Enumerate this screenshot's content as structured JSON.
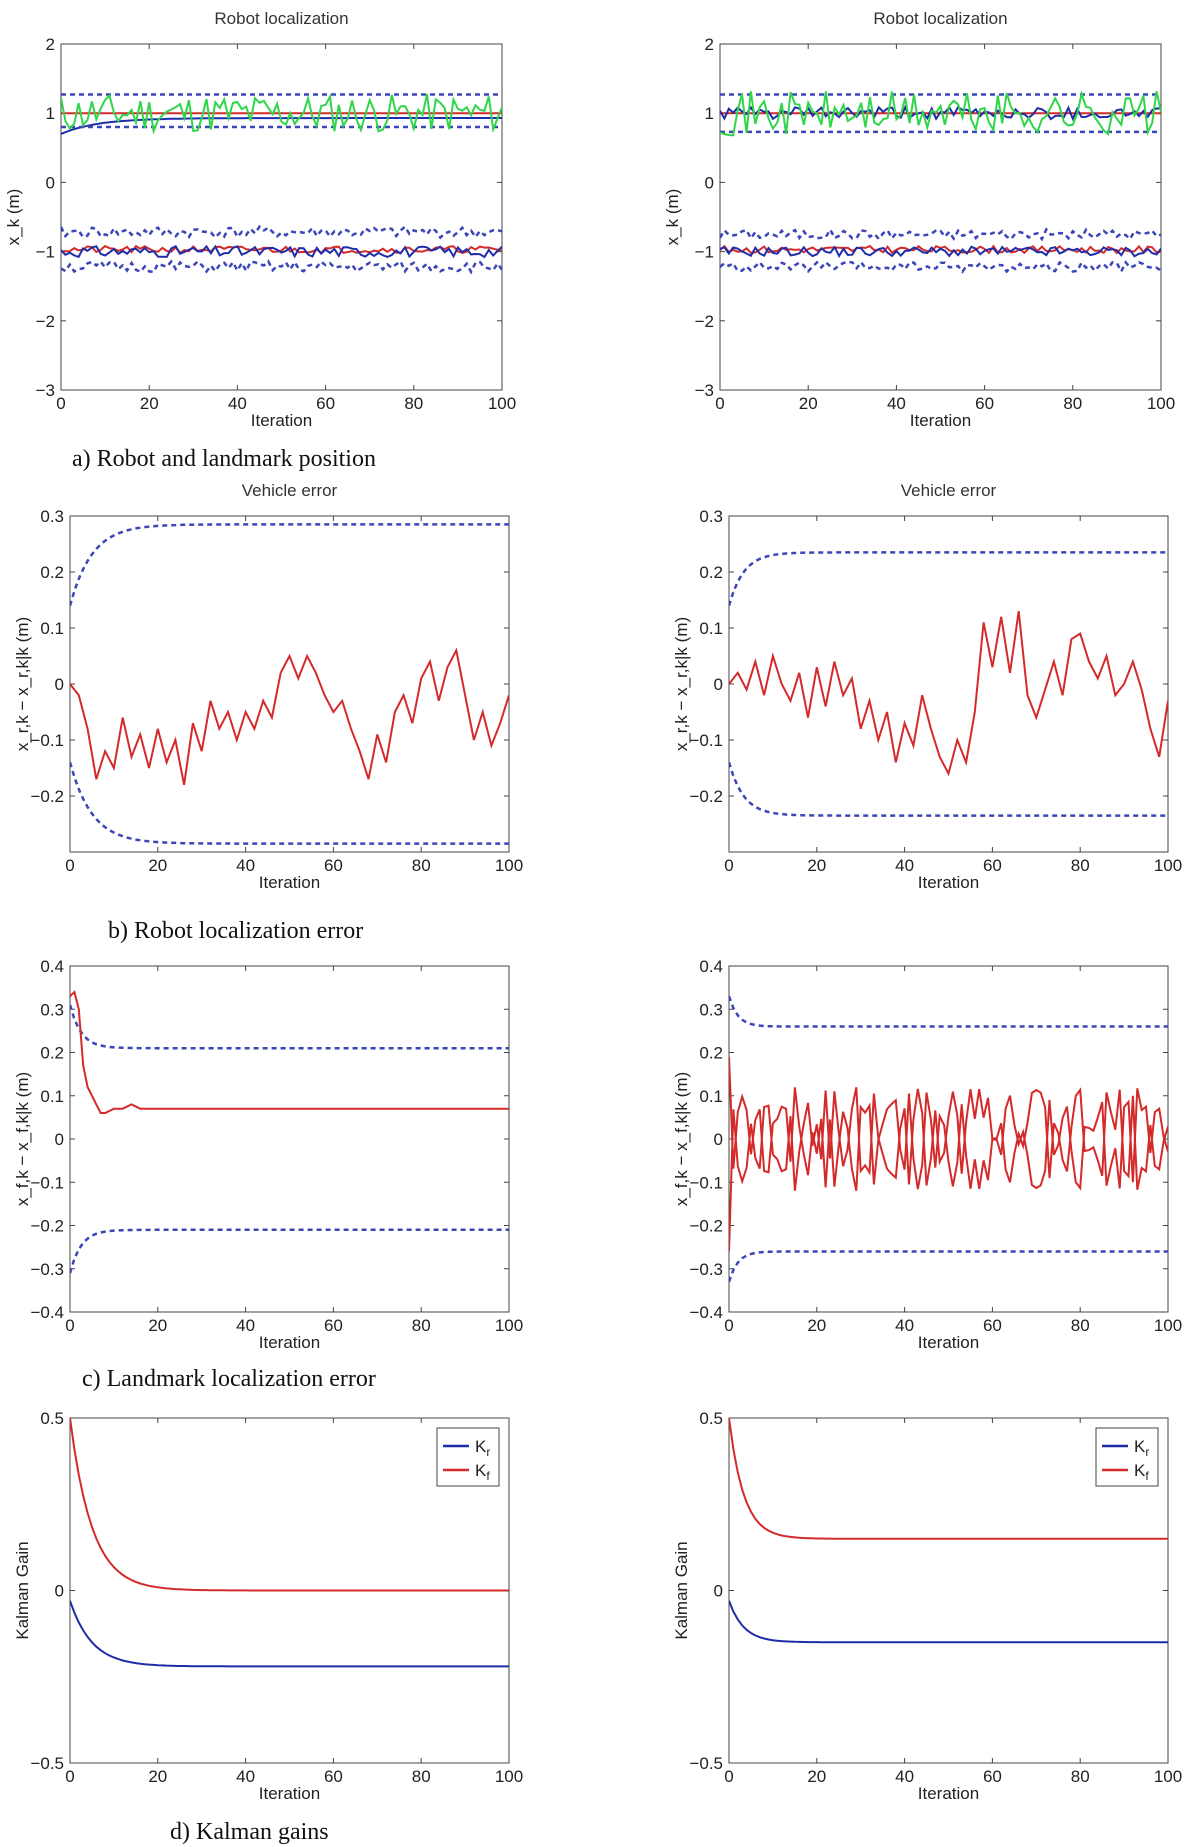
{
  "colors": {
    "blue": "#1f2ea8",
    "dashed_blue": "#3b46b8",
    "red": "#d42a2a",
    "green": "#2fd64a"
  },
  "captions": {
    "a": "a) Robot and landmark position",
    "b": "b) Robot localization error",
    "c": "c) Landmark localization error",
    "d": "d) Kalman gains"
  },
  "chart_data": [
    {
      "id": "a-left",
      "type": "line",
      "title": "Robot localization",
      "xlabel": "Iteration",
      "ylabel": "x_k (m)",
      "xlim": [
        0,
        100
      ],
      "ylim": [
        -3,
        2
      ],
      "xticks": [
        0,
        20,
        40,
        60,
        80,
        100
      ],
      "yticks": [
        -3,
        -2,
        -1,
        0,
        1,
        2
      ],
      "series": [
        {
          "color": "red",
          "style": "solid",
          "kind": "const",
          "value": 1.0
        },
        {
          "color": "blue",
          "style": "solid",
          "kind": "decay",
          "start": 0.7,
          "end": 0.93,
          "rate": 0.12
        },
        {
          "color": "blue",
          "style": "dashed",
          "kind": "const",
          "value": 1.27
        },
        {
          "color": "blue",
          "style": "dashed",
          "kind": "const",
          "value": 0.8
        },
        {
          "color": "green",
          "style": "solid",
          "kind": "noise",
          "center": 1.0,
          "amp": 0.28,
          "seed": 11
        },
        {
          "color": "red",
          "style": "solid",
          "kind": "noise",
          "center": -0.97,
          "amp": 0.05,
          "seed": 21
        },
        {
          "color": "blue",
          "style": "solid",
          "kind": "noise",
          "center": -1.0,
          "amp": 0.08,
          "seed": 31
        },
        {
          "color": "blue",
          "style": "dashed",
          "kind": "noise",
          "center": -0.72,
          "amp": 0.08,
          "seed": 41
        },
        {
          "color": "blue",
          "style": "dashed",
          "kind": "noise",
          "center": -1.22,
          "amp": 0.08,
          "seed": 51
        }
      ]
    },
    {
      "id": "a-right",
      "type": "line",
      "title": "Robot localization",
      "xlabel": "Iteration",
      "ylabel": "x_k (m)",
      "xlim": [
        0,
        100
      ],
      "ylim": [
        -3,
        2
      ],
      "xticks": [
        0,
        20,
        40,
        60,
        80,
        100
      ],
      "yticks": [
        -3,
        -2,
        -1,
        0,
        1,
        2
      ],
      "series": [
        {
          "color": "red",
          "style": "solid",
          "kind": "const",
          "value": 1.0
        },
        {
          "color": "blue",
          "style": "solid",
          "kind": "noise",
          "center": 1.0,
          "amp": 0.09,
          "seed": 61
        },
        {
          "color": "blue",
          "style": "dashed",
          "kind": "const",
          "value": 1.27
        },
        {
          "color": "blue",
          "style": "dashed",
          "kind": "const",
          "value": 0.73
        },
        {
          "color": "green",
          "style": "solid",
          "kind": "noise",
          "center": 1.0,
          "amp": 0.32,
          "seed": 71
        },
        {
          "color": "red",
          "style": "solid",
          "kind": "noise",
          "center": -0.97,
          "amp": 0.05,
          "seed": 81
        },
        {
          "color": "blue",
          "style": "solid",
          "kind": "noise",
          "center": -1.0,
          "amp": 0.07,
          "seed": 91
        },
        {
          "color": "blue",
          "style": "dashed",
          "kind": "noise",
          "center": -0.75,
          "amp": 0.07,
          "seed": 101
        },
        {
          "color": "blue",
          "style": "dashed",
          "kind": "noise",
          "center": -1.22,
          "amp": 0.07,
          "seed": 111
        }
      ]
    },
    {
      "id": "b-left",
      "type": "line",
      "title": "Vehicle error",
      "xlabel": "Iteration",
      "ylabel": "x_r,k − x_r,k|k (m)",
      "xlim": [
        0,
        100
      ],
      "ylim": [
        -0.3,
        0.3
      ],
      "xticks": [
        0,
        20,
        40,
        60,
        80,
        100
      ],
      "yticks": [
        -0.2,
        -0.1,
        0,
        0.1,
        0.2,
        0.3
      ],
      "series": [
        {
          "color": "blue",
          "style": "dashed",
          "kind": "rise",
          "start": 0.14,
          "end": 0.285,
          "rate": 0.2
        },
        {
          "color": "blue",
          "style": "dashed",
          "kind": "rise",
          "start": -0.14,
          "end": -0.285,
          "rate": 0.2
        },
        {
          "color": "red",
          "style": "solid",
          "kind": "points",
          "points": [
            [
              0,
              0
            ],
            [
              2,
              -0.02
            ],
            [
              4,
              -0.08
            ],
            [
              6,
              -0.17
            ],
            [
              8,
              -0.12
            ],
            [
              10,
              -0.15
            ],
            [
              12,
              -0.06
            ],
            [
              14,
              -0.13
            ],
            [
              16,
              -0.09
            ],
            [
              18,
              -0.15
            ],
            [
              20,
              -0.08
            ],
            [
              22,
              -0.14
            ],
            [
              24,
              -0.1
            ],
            [
              26,
              -0.18
            ],
            [
              28,
              -0.07
            ],
            [
              30,
              -0.12
            ],
            [
              32,
              -0.03
            ],
            [
              34,
              -0.08
            ],
            [
              36,
              -0.05
            ],
            [
              38,
              -0.1
            ],
            [
              40,
              -0.05
            ],
            [
              42,
              -0.08
            ],
            [
              44,
              -0.03
            ],
            [
              46,
              -0.06
            ],
            [
              48,
              0.02
            ],
            [
              50,
              0.05
            ],
            [
              52,
              0.01
            ],
            [
              54,
              0.05
            ],
            [
              56,
              0.02
            ],
            [
              58,
              -0.02
            ],
            [
              60,
              -0.05
            ],
            [
              62,
              -0.03
            ],
            [
              64,
              -0.08
            ],
            [
              66,
              -0.12
            ],
            [
              68,
              -0.17
            ],
            [
              70,
              -0.09
            ],
            [
              72,
              -0.14
            ],
            [
              74,
              -0.05
            ],
            [
              76,
              -0.02
            ],
            [
              78,
              -0.07
            ],
            [
              80,
              0.01
            ],
            [
              82,
              0.04
            ],
            [
              84,
              -0.03
            ],
            [
              86,
              0.03
            ],
            [
              88,
              0.06
            ],
            [
              90,
              -0.02
            ],
            [
              92,
              -0.1
            ],
            [
              94,
              -0.05
            ],
            [
              96,
              -0.11
            ],
            [
              98,
              -0.07
            ],
            [
              100,
              -0.02
            ]
          ]
        }
      ]
    },
    {
      "id": "b-right",
      "type": "line",
      "title": "Vehicle error",
      "xlabel": "Iteration",
      "ylabel": "x_r,k − x_r,k|k (m)",
      "xlim": [
        0,
        100
      ],
      "ylim": [
        -0.3,
        0.3
      ],
      "xticks": [
        0,
        20,
        40,
        60,
        80,
        100
      ],
      "yticks": [
        -0.2,
        -0.1,
        0,
        0.1,
        0.2,
        0.3
      ],
      "series": [
        {
          "color": "blue",
          "style": "dashed",
          "kind": "rise",
          "start": 0.14,
          "end": 0.235,
          "rate": 0.3
        },
        {
          "color": "blue",
          "style": "dashed",
          "kind": "rise",
          "start": -0.14,
          "end": -0.235,
          "rate": 0.3
        },
        {
          "color": "red",
          "style": "solid",
          "kind": "points",
          "points": [
            [
              0,
              0
            ],
            [
              2,
              0.02
            ],
            [
              4,
              -0.01
            ],
            [
              6,
              0.04
            ],
            [
              8,
              -0.02
            ],
            [
              10,
              0.05
            ],
            [
              12,
              0.0
            ],
            [
              14,
              -0.03
            ],
            [
              16,
              0.02
            ],
            [
              18,
              -0.06
            ],
            [
              20,
              0.03
            ],
            [
              22,
              -0.04
            ],
            [
              24,
              0.04
            ],
            [
              26,
              -0.02
            ],
            [
              28,
              0.01
            ],
            [
              30,
              -0.08
            ],
            [
              32,
              -0.03
            ],
            [
              34,
              -0.1
            ],
            [
              36,
              -0.05
            ],
            [
              38,
              -0.14
            ],
            [
              40,
              -0.07
            ],
            [
              42,
              -0.11
            ],
            [
              44,
              -0.02
            ],
            [
              46,
              -0.08
            ],
            [
              48,
              -0.13
            ],
            [
              50,
              -0.16
            ],
            [
              52,
              -0.1
            ],
            [
              54,
              -0.14
            ],
            [
              56,
              -0.05
            ],
            [
              58,
              0.11
            ],
            [
              60,
              0.03
            ],
            [
              62,
              0.12
            ],
            [
              64,
              0.02
            ],
            [
              66,
              0.13
            ],
            [
              68,
              -0.02
            ],
            [
              70,
              -0.06
            ],
            [
              72,
              -0.01
            ],
            [
              74,
              0.04
            ],
            [
              76,
              -0.02
            ],
            [
              78,
              0.08
            ],
            [
              80,
              0.09
            ],
            [
              82,
              0.04
            ],
            [
              84,
              0.01
            ],
            [
              86,
              0.05
            ],
            [
              88,
              -0.02
            ],
            [
              90,
              0.0
            ],
            [
              92,
              0.04
            ],
            [
              94,
              -0.01
            ],
            [
              96,
              -0.08
            ],
            [
              98,
              -0.13
            ],
            [
              100,
              -0.03
            ]
          ]
        }
      ]
    },
    {
      "id": "c-left",
      "type": "line",
      "title": "",
      "xlabel": "Iteration",
      "ylabel": "x_f,k − x_f,k|k (m)",
      "xlim": [
        0,
        100
      ],
      "ylim": [
        -0.4,
        0.4
      ],
      "xticks": [
        0,
        20,
        40,
        60,
        80,
        100
      ],
      "yticks": [
        -0.4,
        -0.3,
        -0.2,
        -0.1,
        0,
        0.1,
        0.2,
        0.3,
        0.4
      ],
      "series": [
        {
          "color": "blue",
          "style": "dashed",
          "kind": "decay",
          "start": 0.31,
          "end": 0.21,
          "rate": 0.4
        },
        {
          "color": "blue",
          "style": "dashed",
          "kind": "decay",
          "start": -0.31,
          "end": -0.21,
          "rate": 0.4
        },
        {
          "color": "red",
          "style": "solid",
          "kind": "points",
          "points": [
            [
              0,
              0.33
            ],
            [
              1,
              0.34
            ],
            [
              2,
              0.3
            ],
            [
              3,
              0.17
            ],
            [
              4,
              0.12
            ],
            [
              5,
              0.1
            ],
            [
              6,
              0.08
            ],
            [
              7,
              0.06
            ],
            [
              8,
              0.06
            ],
            [
              10,
              0.07
            ],
            [
              12,
              0.07
            ],
            [
              14,
              0.08
            ],
            [
              16,
              0.07
            ],
            [
              20,
              0.07
            ],
            [
              40,
              0.07
            ],
            [
              60,
              0.07
            ],
            [
              80,
              0.07
            ],
            [
              100,
              0.07
            ]
          ]
        }
      ]
    },
    {
      "id": "c-right",
      "type": "line",
      "title": "",
      "xlabel": "Iteration",
      "ylabel": "x_f,k − x_f,k|k (m)",
      "xlim": [
        0,
        100
      ],
      "ylim": [
        -0.4,
        0.4
      ],
      "xticks": [
        0,
        20,
        40,
        60,
        80,
        100
      ],
      "yticks": [
        -0.4,
        -0.3,
        -0.2,
        -0.1,
        0,
        0.1,
        0.2,
        0.3,
        0.4
      ],
      "series": [
        {
          "color": "blue",
          "style": "dashed",
          "kind": "decay",
          "start": 0.33,
          "end": 0.26,
          "rate": 0.5
        },
        {
          "color": "blue",
          "style": "dashed",
          "kind": "decay",
          "start": -0.33,
          "end": -0.26,
          "rate": 0.5
        },
        {
          "color": "red",
          "style": "solid",
          "kind": "noise-sym",
          "center": 0.0,
          "amp": 0.12,
          "seed": 131,
          "start": 0.19
        },
        {
          "color": "red",
          "style": "solid",
          "kind": "noise-sym",
          "center": 0.0,
          "amp": 0.12,
          "seed": 131,
          "start": -0.26,
          "mirror": true
        }
      ]
    },
    {
      "id": "d-left",
      "type": "line",
      "title": "",
      "xlabel": "Iteration",
      "ylabel": "Kalman Gain",
      "xlim": [
        0,
        100
      ],
      "ylim": [
        -0.5,
        0.5
      ],
      "xticks": [
        0,
        20,
        40,
        60,
        80,
        100
      ],
      "yticks": [
        -0.5,
        0,
        0.5
      ],
      "legend": {
        "position": "top-right",
        "entries": [
          {
            "label": "K",
            "sub": "r",
            "color": "blue"
          },
          {
            "label": "K",
            "sub": "f",
            "color": "red"
          }
        ]
      },
      "series": [
        {
          "color": "red",
          "style": "solid",
          "kind": "decay",
          "start": 0.5,
          "end": 0.0,
          "rate": 0.2
        },
        {
          "color": "blue",
          "style": "solid",
          "kind": "decay",
          "start": -0.03,
          "end": -0.22,
          "rate": 0.2
        }
      ]
    },
    {
      "id": "d-right",
      "type": "line",
      "title": "",
      "xlabel": "Iteration",
      "ylabel": "Kalman Gain",
      "xlim": [
        0,
        100
      ],
      "ylim": [
        -0.5,
        0.5
      ],
      "xticks": [
        0,
        20,
        40,
        60,
        80,
        100
      ],
      "yticks": [
        -0.5,
        0,
        0.5
      ],
      "legend": {
        "position": "top-right",
        "entries": [
          {
            "label": "K",
            "sub": "r",
            "color": "blue"
          },
          {
            "label": "K",
            "sub": "f",
            "color": "red"
          }
        ]
      },
      "series": [
        {
          "color": "red",
          "style": "solid",
          "kind": "decay",
          "start": 0.5,
          "end": 0.15,
          "rate": 0.3
        },
        {
          "color": "blue",
          "style": "solid",
          "kind": "decay",
          "start": -0.03,
          "end": -0.15,
          "rate": 0.3
        }
      ]
    }
  ]
}
